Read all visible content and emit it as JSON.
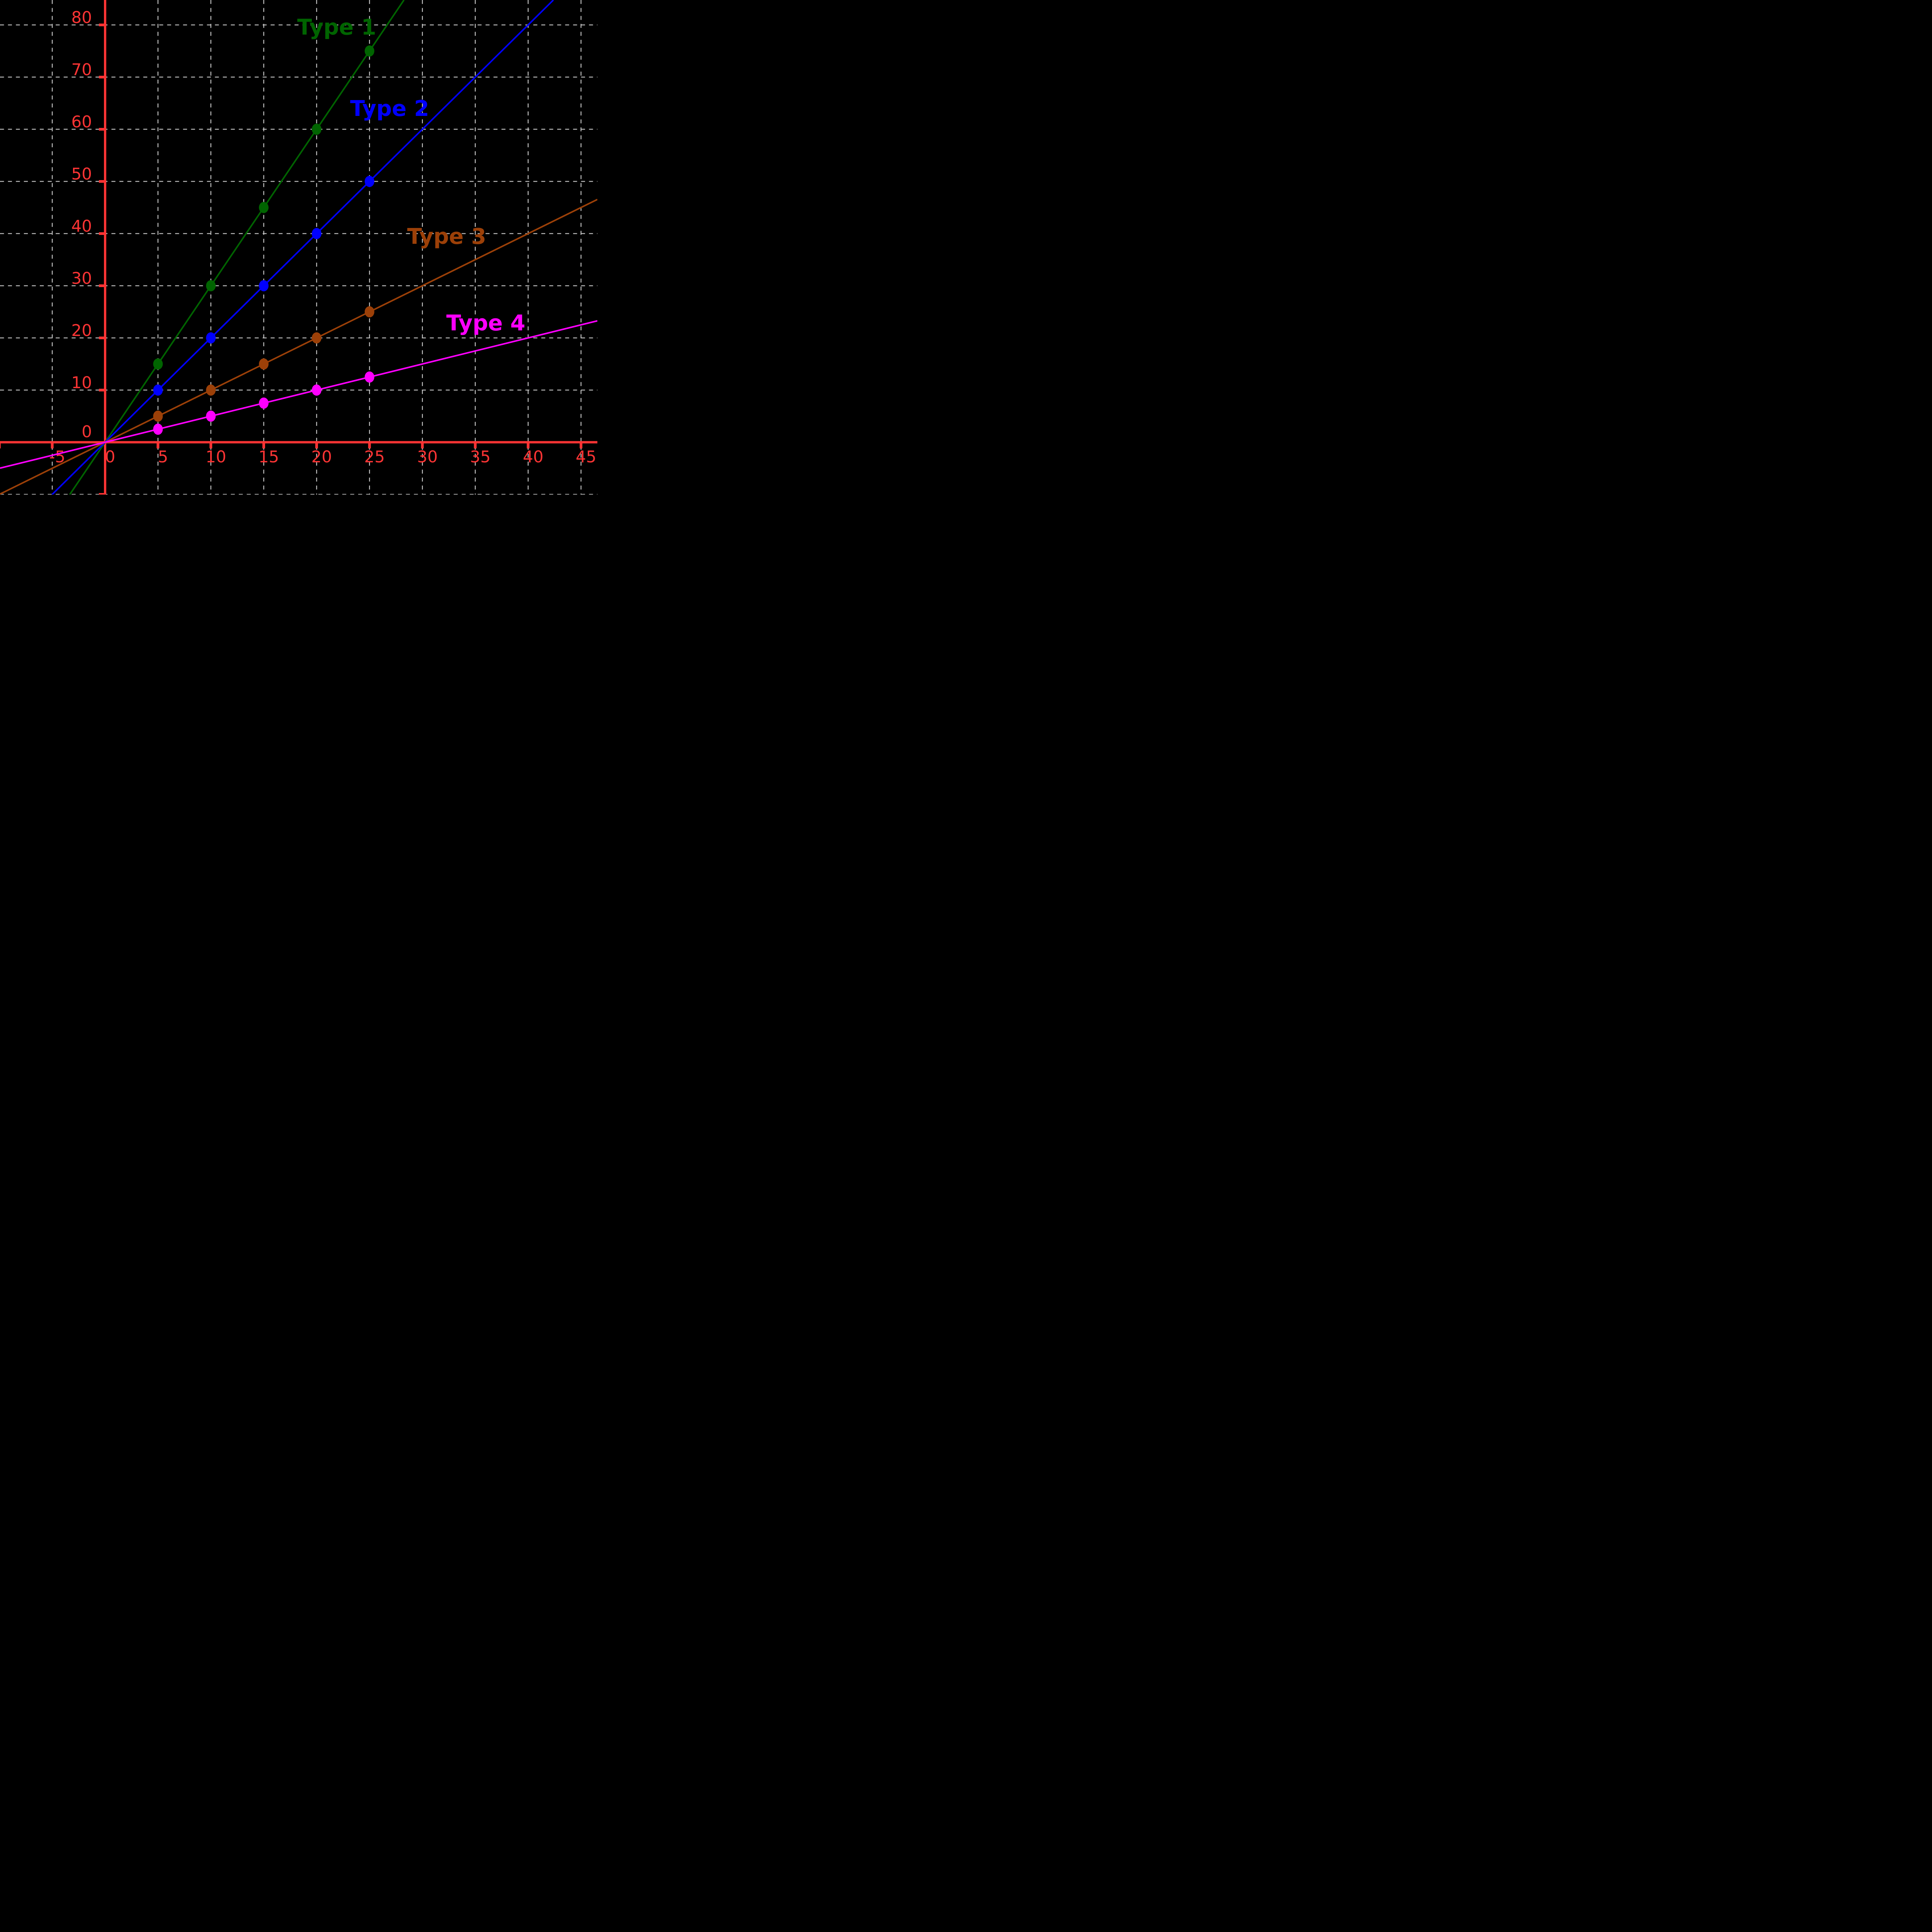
{
  "chart_data": {
    "type": "line",
    "title": "",
    "background_color": "#000000",
    "grid": {
      "on": true,
      "style": "dashed",
      "color": "#c8c8c8",
      "x_step": 5,
      "y_step": 10
    },
    "axes": {
      "color": "#fc3434",
      "tick_label_color": "#fc3434",
      "x_range": [
        -9.9,
        46.5
      ],
      "y_range": [
        -10.0,
        84.8
      ],
      "x_tick_values": [
        -5,
        0,
        5,
        10,
        15,
        20,
        25,
        30,
        35,
        40,
        45
      ],
      "x_tick_labels": [
        "-5",
        "0",
        "5",
        "10",
        "15",
        "20",
        "25",
        "30",
        "35",
        "40",
        "45"
      ],
      "y_tick_values": [
        0,
        10,
        20,
        30,
        40,
        50,
        60,
        70,
        80
      ],
      "y_tick_labels": [
        "0",
        "10",
        "20",
        "30",
        "40",
        "50",
        "60",
        "70",
        "80"
      ]
    },
    "legend_position": "inline-colored-labels",
    "x": [
      5,
      10,
      15,
      20,
      25
    ],
    "series": [
      {
        "name": "Type 1",
        "color": "#006400",
        "slope": 3,
        "values": [
          15,
          30,
          45,
          60,
          75
        ],
        "label_x": 21.9,
        "label_y": 79.6
      },
      {
        "name": "Type 2",
        "color": "#0000ff",
        "slope": 2,
        "values": [
          10,
          20,
          30,
          40,
          50
        ],
        "label_x": 26.9,
        "label_y": 64.0
      },
      {
        "name": "Type 3",
        "color": "#9c4008",
        "slope": 1,
        "values": [
          5,
          10,
          15,
          20,
          25
        ],
        "label_x": 32.3,
        "label_y": 39.5
      },
      {
        "name": "Type 4",
        "color": "#ff00ff",
        "slope": 0.5,
        "values": [
          2.5,
          5,
          7.5,
          10,
          12.5
        ],
        "label_x": 36.0,
        "label_y": 22.9
      }
    ]
  }
}
